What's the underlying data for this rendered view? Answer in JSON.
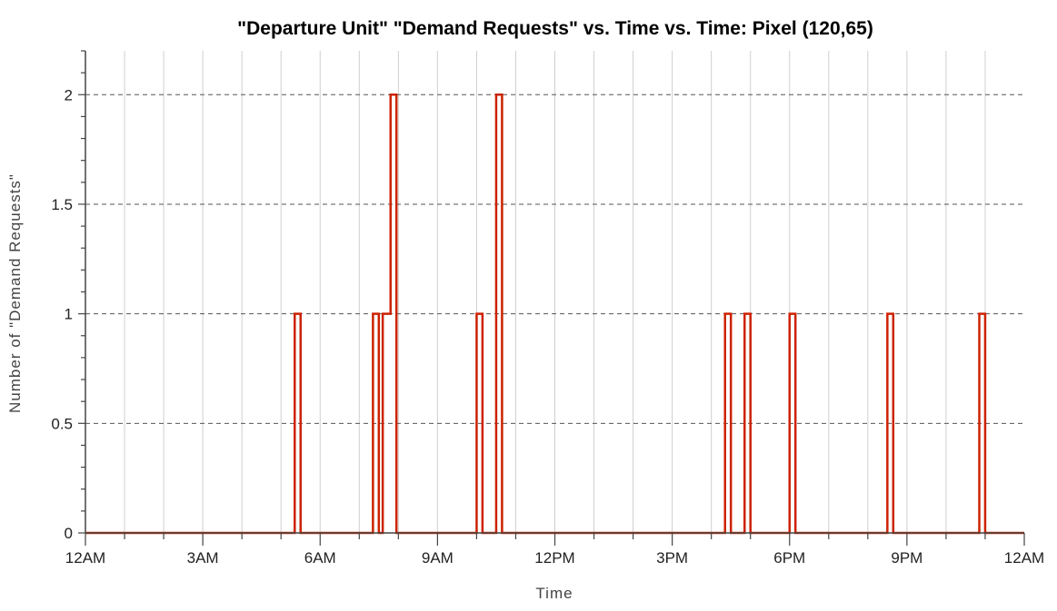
{
  "chart_data": {
    "type": "line",
    "step": true,
    "title": "\"Departure Unit\" \"Demand Requests\" vs. Time vs. Time: Pixel (120,65)",
    "xlabel": "Time",
    "ylabel": "Number of \"Demand Requests\"",
    "xlim": [
      0,
      24
    ],
    "ylim": [
      0,
      2.2
    ],
    "x_ticks": [
      0,
      3,
      6,
      9,
      12,
      15,
      18,
      21,
      24
    ],
    "x_tick_labels": [
      "12AM",
      "3AM",
      "6AM",
      "9AM",
      "12PM",
      "3PM",
      "6PM",
      "9PM",
      "12AM"
    ],
    "y_ticks": [
      0,
      0.5,
      1,
      1.5,
      2
    ],
    "y_tick_labels": [
      "0",
      "0.5",
      "1",
      "1.5",
      "2"
    ],
    "grid": {
      "vertical": "solid-light",
      "horizontal": "dashed"
    },
    "series": [
      {
        "color": "#cc2200",
        "points": [
          [
            0,
            0
          ],
          [
            5.35,
            0
          ],
          [
            5.35,
            1
          ],
          [
            5.5,
            1
          ],
          [
            5.5,
            0
          ],
          [
            7.35,
            0
          ],
          [
            7.35,
            1
          ],
          [
            7.5,
            1
          ],
          [
            7.5,
            0
          ],
          [
            7.6,
            0
          ],
          [
            7.6,
            1
          ],
          [
            7.8,
            1
          ],
          [
            7.8,
            2
          ],
          [
            7.95,
            2
          ],
          [
            7.95,
            0
          ],
          [
            10.0,
            0
          ],
          [
            10.0,
            1
          ],
          [
            10.15,
            1
          ],
          [
            10.15,
            0
          ],
          [
            10.5,
            0
          ],
          [
            10.5,
            2
          ],
          [
            10.65,
            2
          ],
          [
            10.65,
            0
          ],
          [
            16.35,
            0
          ],
          [
            16.35,
            1
          ],
          [
            16.5,
            1
          ],
          [
            16.5,
            0
          ],
          [
            16.85,
            0
          ],
          [
            16.85,
            1
          ],
          [
            17.0,
            1
          ],
          [
            17.0,
            0
          ],
          [
            18.0,
            0
          ],
          [
            18.0,
            1
          ],
          [
            18.15,
            1
          ],
          [
            18.15,
            0
          ],
          [
            20.5,
            0
          ],
          [
            20.5,
            1
          ],
          [
            20.65,
            1
          ],
          [
            20.65,
            0
          ],
          [
            22.85,
            0
          ],
          [
            22.85,
            1
          ],
          [
            23.0,
            1
          ],
          [
            23.0,
            0
          ],
          [
            24,
            0
          ]
        ]
      }
    ]
  }
}
